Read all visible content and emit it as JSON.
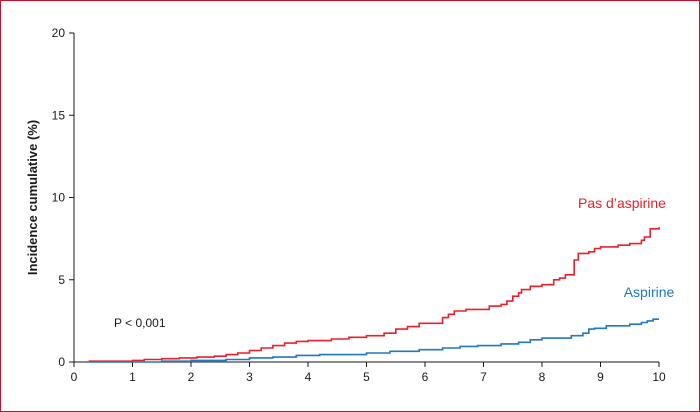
{
  "chart_data": {
    "type": "line",
    "title": "",
    "xlabel": "",
    "ylabel": "Incidence cumulative (%)",
    "xlim": [
      0,
      10
    ],
    "ylim": [
      0,
      20
    ],
    "x_ticks": [
      0,
      1,
      2,
      3,
      4,
      5,
      6,
      7,
      8,
      9,
      10
    ],
    "y_ticks": [
      0,
      5,
      10,
      15,
      20
    ],
    "grid": false,
    "annotation": "P < 0,001",
    "colors": {
      "pas_aspirine": "#e8202a",
      "aspirine": "#1f78c1",
      "frame": "#c8102e"
    },
    "series": [
      {
        "name": "Pas d’aspirine",
        "step": true,
        "points": [
          [
            0.25,
            0.05
          ],
          [
            1.0,
            0.1
          ],
          [
            1.2,
            0.15
          ],
          [
            1.5,
            0.2
          ],
          [
            1.8,
            0.25
          ],
          [
            2.1,
            0.3
          ],
          [
            2.4,
            0.35
          ],
          [
            2.6,
            0.45
          ],
          [
            2.8,
            0.55
          ],
          [
            3.0,
            0.7
          ],
          [
            3.2,
            0.85
          ],
          [
            3.4,
            1.0
          ],
          [
            3.6,
            1.15
          ],
          [
            3.8,
            1.25
          ],
          [
            4.0,
            1.3
          ],
          [
            4.4,
            1.4
          ],
          [
            4.7,
            1.5
          ],
          [
            5.0,
            1.6
          ],
          [
            5.3,
            1.75
          ],
          [
            5.5,
            2.0
          ],
          [
            5.7,
            2.15
          ],
          [
            5.9,
            2.35
          ],
          [
            6.3,
            2.7
          ],
          [
            6.4,
            2.9
          ],
          [
            6.5,
            3.1
          ],
          [
            6.7,
            3.2
          ],
          [
            7.1,
            3.4
          ],
          [
            7.3,
            3.5
          ],
          [
            7.4,
            3.7
          ],
          [
            7.5,
            4.0
          ],
          [
            7.6,
            4.2
          ],
          [
            7.65,
            4.4
          ],
          [
            7.8,
            4.6
          ],
          [
            8.0,
            4.7
          ],
          [
            8.2,
            5.0
          ],
          [
            8.3,
            5.1
          ],
          [
            8.4,
            5.3
          ],
          [
            8.55,
            6.2
          ],
          [
            8.62,
            6.6
          ],
          [
            8.8,
            6.7
          ],
          [
            8.9,
            6.9
          ],
          [
            9.0,
            7.0
          ],
          [
            9.3,
            7.1
          ],
          [
            9.5,
            7.2
          ],
          [
            9.7,
            7.4
          ],
          [
            9.75,
            7.6
          ],
          [
            9.85,
            8.1
          ],
          [
            10.0,
            8.2
          ]
        ]
      },
      {
        "name": "Aspirine",
        "step": true,
        "points": [
          [
            0.25,
            0.0
          ],
          [
            1.5,
            0.05
          ],
          [
            2.0,
            0.1
          ],
          [
            2.6,
            0.15
          ],
          [
            3.0,
            0.25
          ],
          [
            3.4,
            0.3
          ],
          [
            3.8,
            0.4
          ],
          [
            4.2,
            0.45
          ],
          [
            5.0,
            0.55
          ],
          [
            5.4,
            0.65
          ],
          [
            5.9,
            0.75
          ],
          [
            6.3,
            0.85
          ],
          [
            6.6,
            0.95
          ],
          [
            6.9,
            1.0
          ],
          [
            7.3,
            1.1
          ],
          [
            7.6,
            1.2
          ],
          [
            7.8,
            1.35
          ],
          [
            8.0,
            1.45
          ],
          [
            8.5,
            1.6
          ],
          [
            8.7,
            1.75
          ],
          [
            8.8,
            2.0
          ],
          [
            8.9,
            2.05
          ],
          [
            9.1,
            2.2
          ],
          [
            9.5,
            2.3
          ],
          [
            9.7,
            2.4
          ],
          [
            9.8,
            2.5
          ],
          [
            9.9,
            2.6
          ],
          [
            10.0,
            2.6
          ]
        ]
      }
    ]
  }
}
